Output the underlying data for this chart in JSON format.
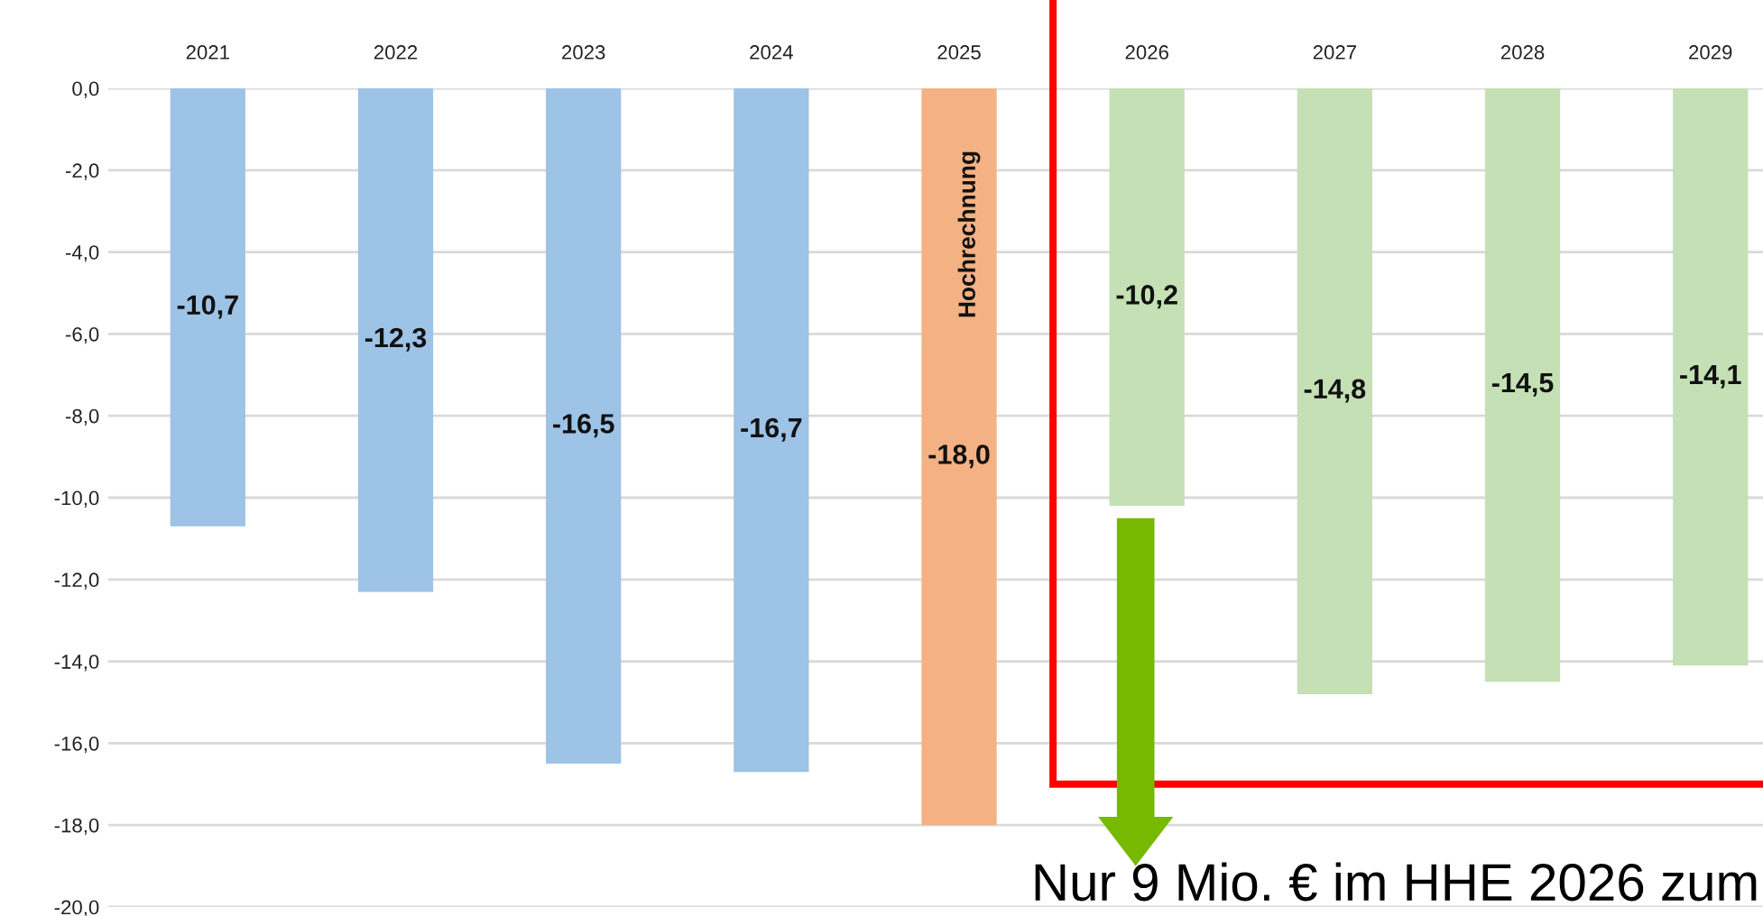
{
  "chart_data": {
    "type": "bar",
    "categories": [
      "2021",
      "2022",
      "2023",
      "2024",
      "2025",
      "2026",
      "2027",
      "2028",
      "2029"
    ],
    "values": [
      -10.7,
      -12.3,
      -16.5,
      -16.7,
      -18.0,
      -10.2,
      -14.8,
      -14.5,
      -14.1
    ],
    "colors": [
      "#9dc3e6",
      "#9dc3e6",
      "#9dc3e6",
      "#9dc3e6",
      "#f4b183",
      "#c5e0b4",
      "#c5e0b4",
      "#c5e0b4",
      "#c5e0b4"
    ],
    "value_labels": [
      "-10,7",
      "-12,3",
      "-16,5",
      "-16,7",
      "-18,0",
      "-10,2",
      "-14,8",
      "-14,5",
      "-14,1"
    ],
    "ylim": [
      -20,
      0
    ],
    "yticks": [
      {
        "value": 0,
        "label": "0,0"
      },
      {
        "value": -2,
        "label": "-2,0"
      },
      {
        "value": -4,
        "label": "-4,0"
      },
      {
        "value": -6,
        "label": "-6,0"
      },
      {
        "value": -8,
        "label": "-8,0"
      },
      {
        "value": -10,
        "label": "-10,0"
      },
      {
        "value": -12,
        "label": "-12,0"
      },
      {
        "value": -14,
        "label": "-14,0"
      },
      {
        "value": -16,
        "label": "-16,0"
      },
      {
        "value": -18,
        "label": "-18,0"
      },
      {
        "value": -20,
        "label": "-20,0"
      }
    ],
    "grid": "y",
    "annotations": [
      "Hochrechnung",
      "Nur 9 Mio. € im HHE 2026 zum"
    ]
  }
}
